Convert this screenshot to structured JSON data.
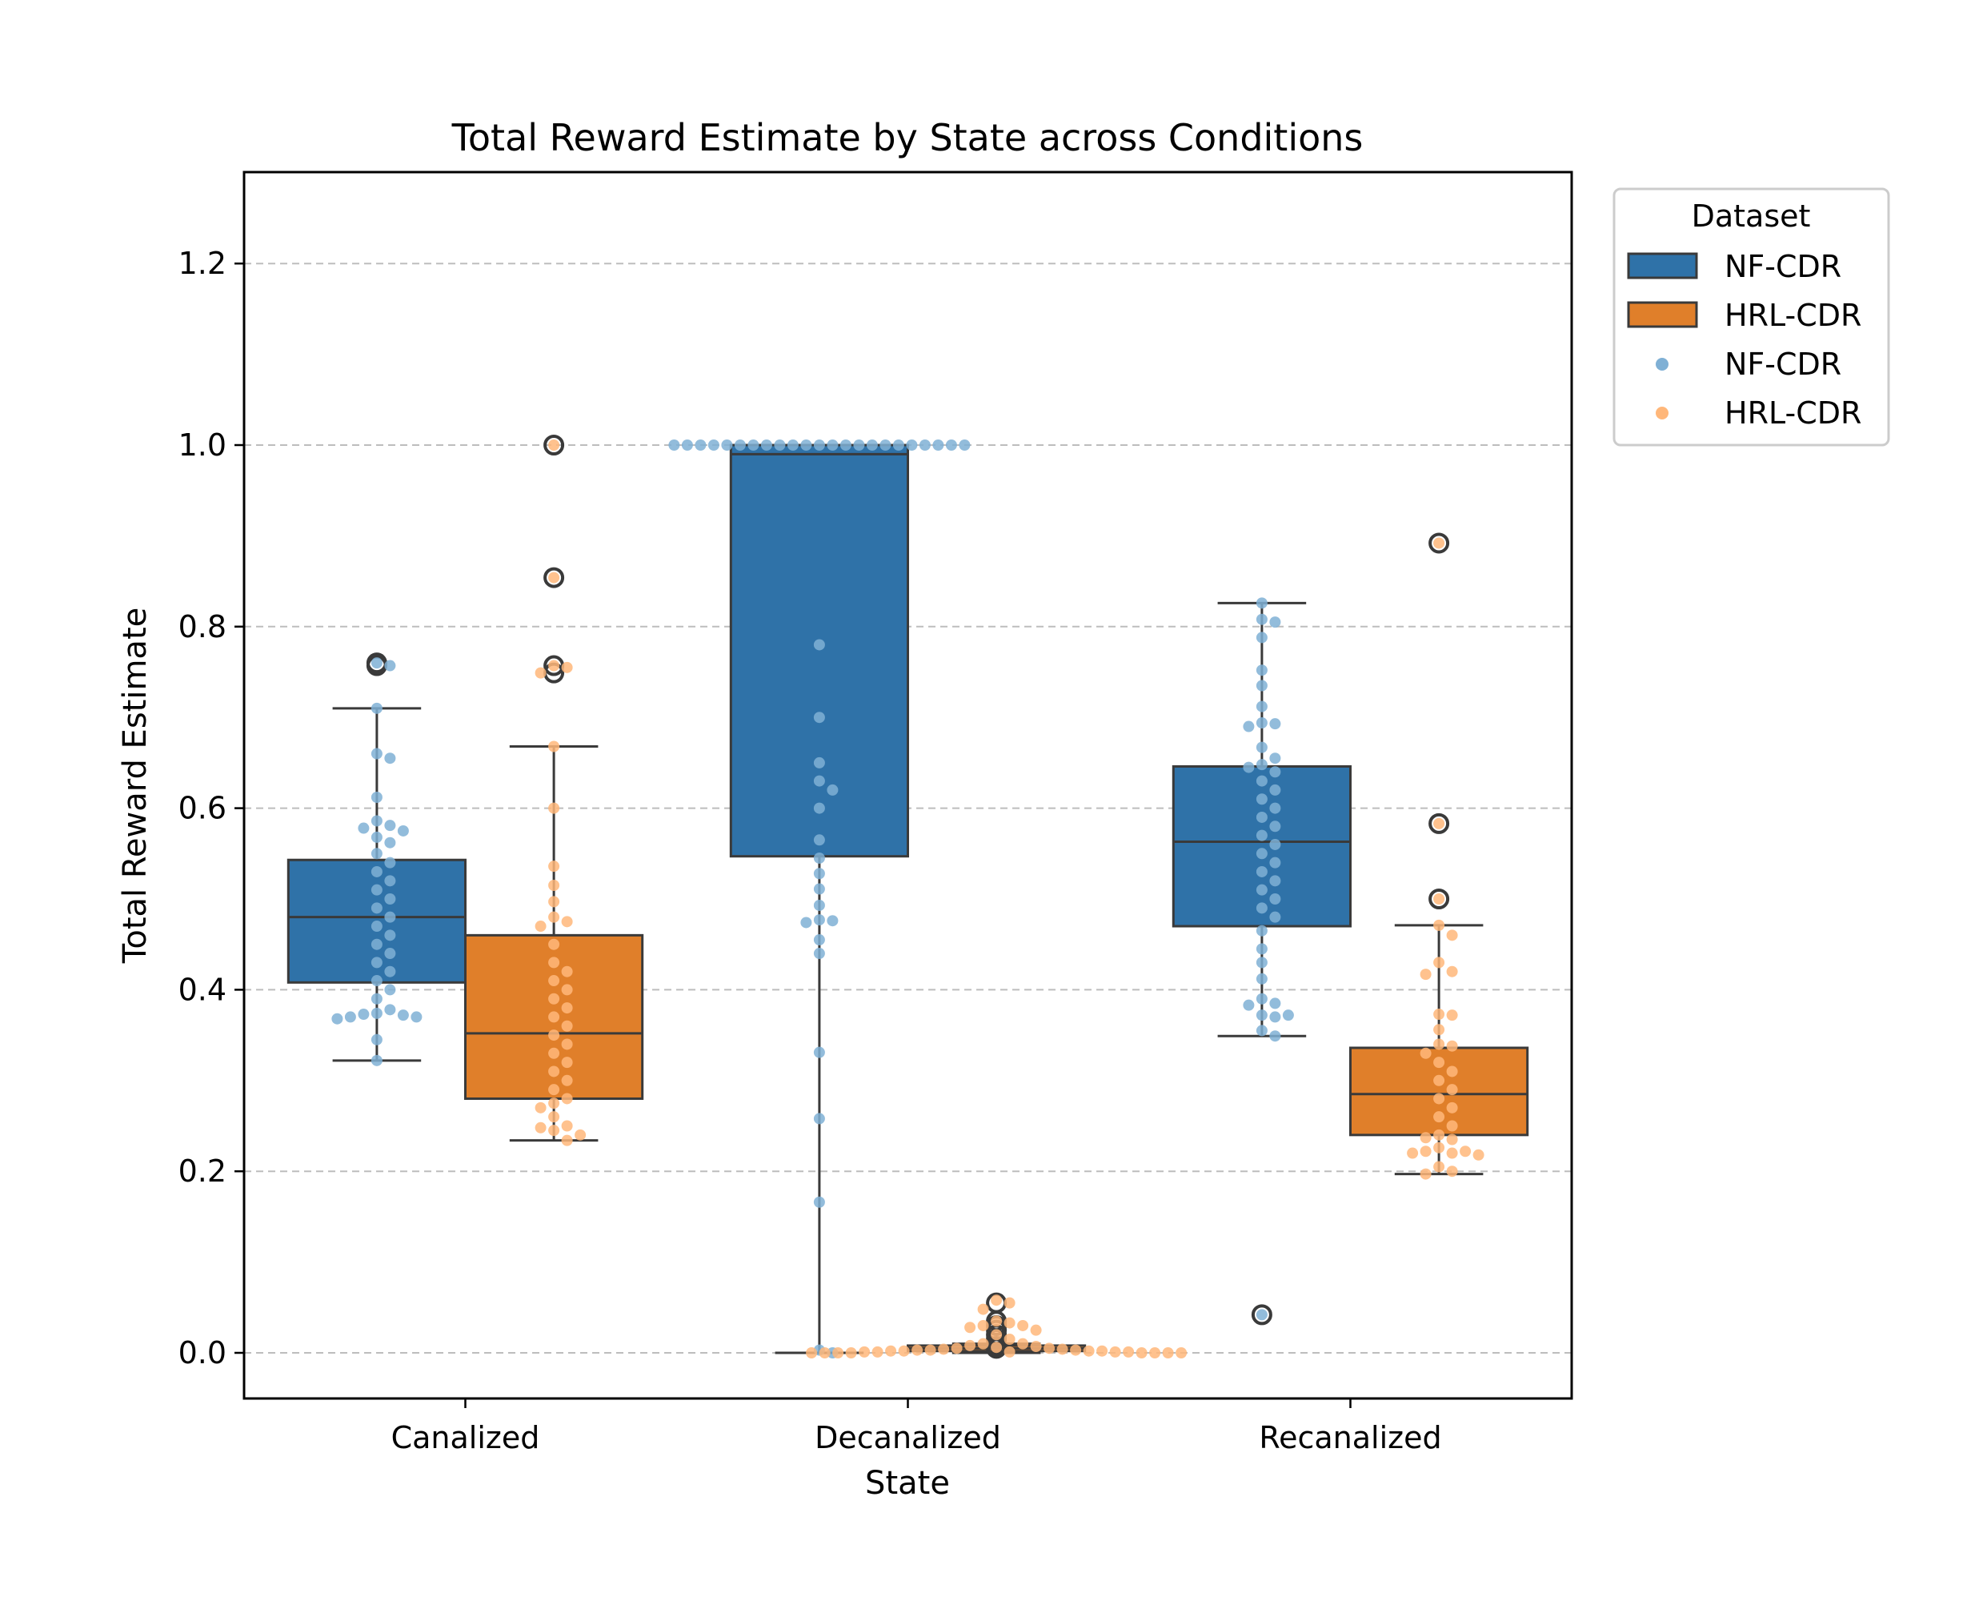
{
  "chart_data": {
    "type": "box",
    "title": "Total Reward Estimate by State across Conditions",
    "xlabel": "State",
    "ylabel": "Total Reward Estimate",
    "ylim": [
      -0.05,
      1.3
    ],
    "yticks": [
      0.0,
      0.2,
      0.4,
      0.6,
      0.8,
      1.0,
      1.2
    ],
    "ytick_labels": [
      "0.0",
      "0.2",
      "0.4",
      "0.6",
      "0.8",
      "1.0",
      "1.2"
    ],
    "categories": [
      "Canalized",
      "Decanalized",
      "Recanalized"
    ],
    "grid": "y, dashed",
    "legend": {
      "title": "Dataset",
      "placement": "outside right, top",
      "entries": [
        {
          "label": "NF-CDR",
          "kind": "box"
        },
        {
          "label": "HRL-CDR",
          "kind": "box"
        },
        {
          "label": "NF-CDR",
          "kind": "point"
        },
        {
          "label": "HRL-CDR",
          "kind": "point"
        }
      ]
    },
    "series": [
      {
        "name": "NF-CDR",
        "color": "#2f72a8",
        "point_color": "#7fb0d5",
        "boxes": [
          {
            "category": "Canalized",
            "whislo": 0.322,
            "q1": 0.408,
            "median": 0.48,
            "q3": 0.543,
            "whishi": 0.71,
            "fliers": [
              0.76,
              0.757
            ]
          },
          {
            "category": "Decanalized",
            "whislo": 0.0,
            "q1": 0.547,
            "median": 0.99,
            "q3": 1.0,
            "whishi": 1.0,
            "fliers": []
          },
          {
            "category": "Recanalized",
            "whislo": 0.349,
            "q1": 0.47,
            "median": 0.563,
            "q3": 0.646,
            "whishi": 0.826,
            "fliers": [
              0.042
            ]
          }
        ],
        "points": [
          {
            "category": "Canalized",
            "values": [
              0.76,
              0.757,
              0.71,
              0.66,
              0.655,
              0.612,
              0.586,
              0.581,
              0.578,
              0.575,
              0.568,
              0.562,
              0.55,
              0.54,
              0.53,
              0.52,
              0.51,
              0.5,
              0.49,
              0.48,
              0.47,
              0.46,
              0.45,
              0.44,
              0.43,
              0.42,
              0.41,
              0.4,
              0.39,
              0.378,
              0.374,
              0.373,
              0.372,
              0.37,
              0.37,
              0.368,
              0.345,
              0.322
            ]
          },
          {
            "category": "Decanalized",
            "values": [
              1.0,
              1.0,
              1.0,
              1.0,
              1.0,
              1.0,
              1.0,
              1.0,
              1.0,
              1.0,
              1.0,
              1.0,
              1.0,
              1.0,
              1.0,
              1.0,
              1.0,
              1.0,
              1.0,
              1.0,
              1.0,
              1.0,
              1.0,
              0.78,
              0.7,
              0.65,
              0.63,
              0.62,
              0.6,
              0.565,
              0.545,
              0.528,
              0.511,
              0.493,
              0.477,
              0.476,
              0.474,
              0.455,
              0.44,
              0.331,
              0.258,
              0.166,
              0.003,
              0.0
            ]
          },
          {
            "category": "Recanalized",
            "values": [
              0.826,
              0.808,
              0.805,
              0.788,
              0.752,
              0.735,
              0.712,
              0.694,
              0.693,
              0.69,
              0.667,
              0.655,
              0.648,
              0.645,
              0.64,
              0.63,
              0.62,
              0.61,
              0.6,
              0.59,
              0.58,
              0.57,
              0.56,
              0.55,
              0.54,
              0.53,
              0.52,
              0.51,
              0.5,
              0.49,
              0.48,
              0.465,
              0.445,
              0.43,
              0.412,
              0.39,
              0.385,
              0.383,
              0.372,
              0.372,
              0.37,
              0.355,
              0.349,
              0.042
            ]
          }
        ]
      },
      {
        "name": "HRL-CDR",
        "color": "#e07f2a",
        "point_color": "#ffb77a",
        "boxes": [
          {
            "category": "Canalized",
            "whislo": 0.234,
            "q1": 0.28,
            "median": 0.352,
            "q3": 0.46,
            "whishi": 0.668,
            "fliers": [
              1.0,
              0.854,
              0.757,
              0.749
            ]
          },
          {
            "category": "Decanalized",
            "whislo": 0.0,
            "q1": 0.002,
            "median": 0.005,
            "q3": 0.008,
            "whishi": 0.01,
            "fliers": [
              0.055,
              0.035,
              0.03,
              0.025,
              0.02,
              0.015,
              0.007,
              0.005
            ]
          },
          {
            "category": "Recanalized",
            "whislo": 0.197,
            "q1": 0.24,
            "median": 0.285,
            "q3": 0.336,
            "whishi": 0.471,
            "fliers": [
              0.892,
              0.583,
              0.5
            ]
          }
        ],
        "points": [
          {
            "category": "Canalized",
            "values": [
              1.0,
              0.854,
              0.757,
              0.755,
              0.749,
              0.668,
              0.6,
              0.536,
              0.515,
              0.497,
              0.48,
              0.475,
              0.47,
              0.45,
              0.43,
              0.42,
              0.41,
              0.4,
              0.39,
              0.38,
              0.37,
              0.36,
              0.35,
              0.34,
              0.33,
              0.32,
              0.31,
              0.3,
              0.29,
              0.28,
              0.275,
              0.27,
              0.26,
              0.25,
              0.248,
              0.245,
              0.24,
              0.234
            ]
          },
          {
            "category": "Decanalized",
            "values": [
              0.058,
              0.055,
              0.048,
              0.035,
              0.033,
              0.03,
              0.03,
              0.028,
              0.025,
              0.02,
              0.015,
              0.01,
              0.01,
              0.008,
              0.007,
              0.006,
              0.005,
              0.005,
              0.004,
              0.004,
              0.003,
              0.003,
              0.003,
              0.002,
              0.002,
              0.002,
              0.002,
              0.001,
              0.001,
              0.001,
              0.001,
              0.001,
              0.0,
              0.0,
              0.0,
              0.0,
              0.0,
              0.0,
              0.0,
              0.0
            ]
          },
          {
            "category": "Recanalized",
            "values": [
              0.892,
              0.583,
              0.5,
              0.471,
              0.46,
              0.43,
              0.42,
              0.417,
              0.373,
              0.372,
              0.356,
              0.34,
              0.338,
              0.33,
              0.32,
              0.31,
              0.3,
              0.29,
              0.28,
              0.27,
              0.26,
              0.25,
              0.24,
              0.237,
              0.235,
              0.226,
              0.222,
              0.222,
              0.22,
              0.22,
              0.218,
              0.205,
              0.2,
              0.197
            ]
          }
        ]
      }
    ]
  }
}
